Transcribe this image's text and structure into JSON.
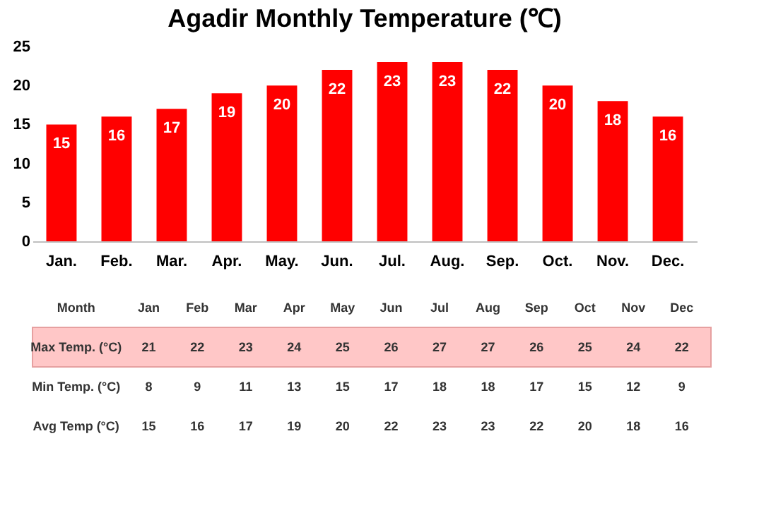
{
  "chart_data": {
    "type": "bar",
    "title": "Agadir Monthly Temperature (℃)",
    "categories": [
      "Jan.",
      "Feb.",
      "Mar.",
      "Apr.",
      "May.",
      "Jun.",
      "Jul.",
      "Aug.",
      "Sep.",
      "Oct.",
      "Nov.",
      "Dec."
    ],
    "values": [
      15,
      16,
      17,
      19,
      20,
      22,
      23,
      23,
      22,
      20,
      18,
      16
    ],
    "color": "#ff0000",
    "ylim": [
      0,
      25
    ],
    "yticks": [
      0,
      5,
      10,
      15,
      20,
      25
    ],
    "grid": false,
    "data_labels": true,
    "annotations": [
      "Month",
      "Jan",
      "Feb",
      "Mar",
      "Apr",
      "May",
      "Jun",
      "Jul",
      "Aug",
      "Sep",
      "Oct",
      "Nov",
      "Dec",
      "Max Temp. (°C)",
      "21",
      "22",
      "23",
      "24",
      "25",
      "26",
      "27",
      "27",
      "26",
      "25",
      "24",
      "22",
      "Min Temp. (°C)",
      "8",
      "9",
      "11",
      "13",
      "15",
      "17",
      "18",
      "18",
      "17",
      "15",
      "12",
      "9",
      "Avg Temp (°C)",
      "15",
      "16",
      "17",
      "19",
      "20",
      "22",
      "23",
      "23",
      "22",
      "20",
      "18",
      "16"
    ]
  }
}
